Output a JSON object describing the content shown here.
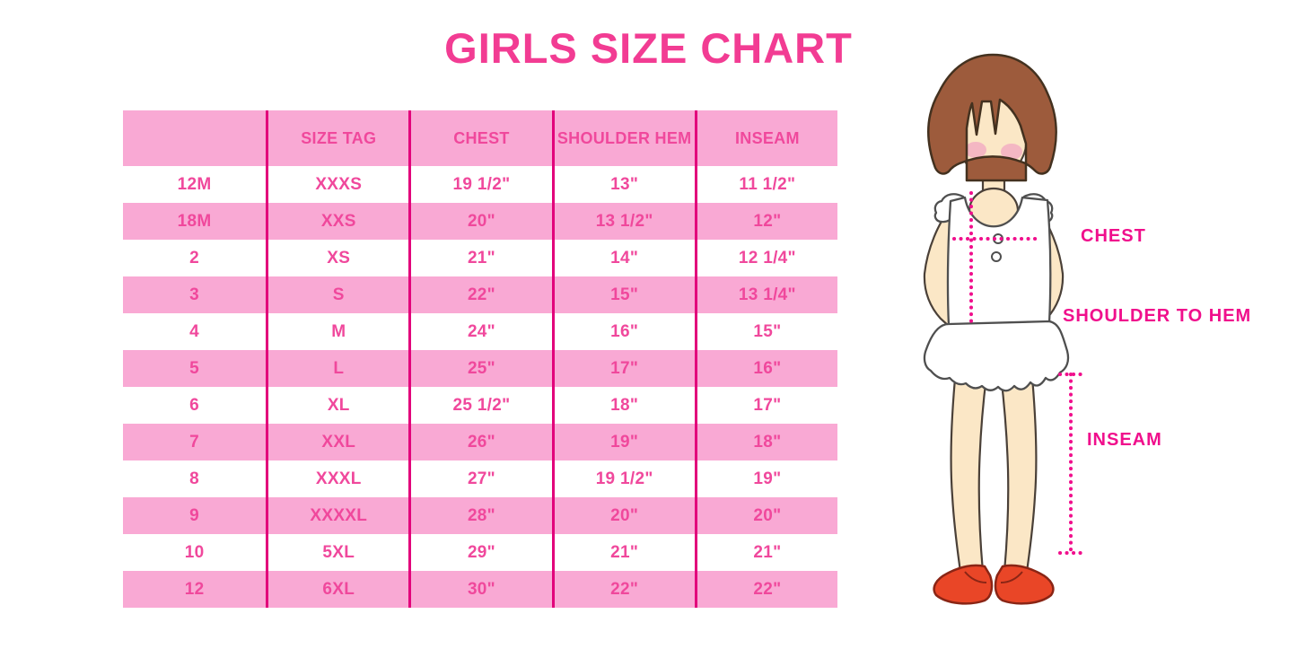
{
  "title": "GIRLS SIZE CHART",
  "colors": {
    "row_pink": "#F9A9D4",
    "divider": "#E2017B",
    "table_text": "#F0489C",
    "title_text": "#F23C93",
    "annotation": "#F00F8C",
    "hair": "#9D5B3C",
    "skin": "#FBE7C6",
    "blush": "#F4B7C3",
    "shoe": "#E94627"
  },
  "chart_data": {
    "type": "table",
    "title": "GIRLS SIZE CHART",
    "columns": [
      "",
      "SIZE TAG",
      "CHEST",
      "SHOULDER HEM",
      "INSEAM"
    ],
    "rows": [
      [
        "12M",
        "XXXS",
        "19 1/2\"",
        "13\"",
        "11 1/2\""
      ],
      [
        "18M",
        "XXS",
        "20\"",
        "13 1/2\"",
        "12\""
      ],
      [
        "2",
        "XS",
        "21\"",
        "14\"",
        "12 1/4\""
      ],
      [
        "3",
        "S",
        "22\"",
        "15\"",
        "13 1/4\""
      ],
      [
        "4",
        "M",
        "24\"",
        "16\"",
        "15\""
      ],
      [
        "5",
        "L",
        "25\"",
        "17\"",
        "16\""
      ],
      [
        "6",
        "XL",
        "25 1/2\"",
        "18\"",
        "17\""
      ],
      [
        "7",
        "XXL",
        "26\"",
        "19\"",
        "18\""
      ],
      [
        "8",
        "XXXL",
        "27\"",
        "19 1/2\"",
        "19\""
      ],
      [
        "9",
        "XXXXL",
        "28\"",
        "20\"",
        "20\""
      ],
      [
        "10",
        "5XL",
        "29\"",
        "21\"",
        "21\""
      ],
      [
        "12",
        "6XL",
        "30\"",
        "22\"",
        "22\""
      ]
    ],
    "layout": {
      "header_fill": "pink",
      "row_striping": "white/pink alternating",
      "grid": "vertical magenta dividers only"
    }
  },
  "annotations": {
    "chest": "CHEST",
    "shoulder_to_hem": "SHOULDER TO HEM",
    "inseam": "INSEAM"
  }
}
